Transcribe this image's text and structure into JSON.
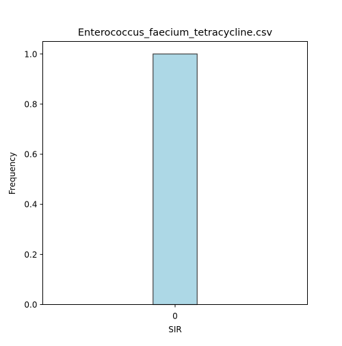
{
  "chart_data": {
    "type": "bar",
    "title": "Enterococcus_faecium_tetracycline.csv",
    "xlabel": "SIR",
    "ylabel": "Frequency",
    "categories": [
      "0"
    ],
    "values": [
      1.0
    ],
    "ylim": [
      0,
      1.05
    ],
    "yticks": [
      "0.0",
      "0.2",
      "0.4",
      "0.6",
      "0.8",
      "1.0"
    ],
    "bar_color": "#ADD8E6",
    "bar_edge_color": "#404040",
    "grid": false,
    "legend": "none"
  }
}
